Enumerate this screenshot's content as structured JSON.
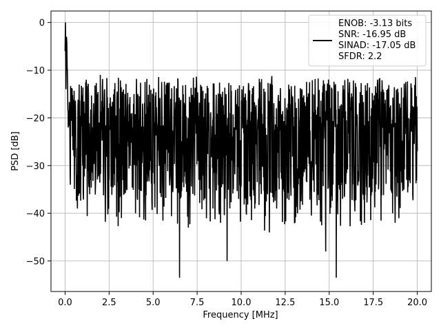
{
  "chart_data": {
    "type": "line",
    "title": "",
    "xlabel": "Frequency [MHz]",
    "ylabel": "PSD [dB]",
    "xlim": [
      -0.8,
      20.8
    ],
    "ylim": [
      -56.4,
      2.4
    ],
    "x_ticks": [
      0.0,
      2.5,
      5.0,
      7.5,
      10.0,
      12.5,
      15.0,
      17.5,
      20.0
    ],
    "x_tick_labels": [
      "0.0",
      "2.5",
      "5.0",
      "7.5",
      "10.0",
      "12.5",
      "15.0",
      "17.5",
      "20.0"
    ],
    "y_ticks": [
      0,
      -10,
      -20,
      -30,
      -40,
      -50
    ],
    "y_tick_labels": [
      "0",
      "−10",
      "−20",
      "−30",
      "−40",
      "−50"
    ],
    "grid": true,
    "legend_position": "top-right",
    "series_color": "#000000",
    "series": [
      {
        "name": "ENOB: -3.13 bits\nSNR: -16.95 dB\nSINAD: -17.05 dB\nSFDR: 2.2",
        "legend_lines": [
          "ENOB: -3.13 bits",
          "SNR: -16.95 dB",
          "SINAD: -17.05 dB",
          "SFDR: 2.2"
        ],
        "x": [
          0.0,
          0.02,
          0.05,
          0.08,
          0.12,
          0.18,
          0.25,
          0.3,
          0.4,
          0.5,
          0.6,
          0.7,
          0.8,
          0.9,
          1.0,
          1.2,
          1.4,
          1.6,
          1.8,
          2.0,
          2.5,
          2.8,
          3.0,
          3.2,
          3.4,
          3.6,
          3.8,
          4.0,
          4.4,
          4.8,
          5.2,
          5.6,
          6.0,
          6.3,
          6.5,
          6.8,
          7.0,
          7.3,
          7.6,
          8.0,
          8.4,
          8.8,
          9.2,
          9.6,
          10.0,
          10.4,
          10.8,
          11.2,
          11.6,
          12.0,
          12.4,
          12.8,
          13.2,
          13.6,
          14.0,
          14.4,
          14.8,
          15.0,
          15.4,
          15.8,
          16.2,
          16.6,
          17.0,
          17.4,
          17.8,
          18.2,
          18.6,
          19.0,
          19.4,
          19.8,
          20.0
        ],
        "y": [
          -6,
          0,
          -14,
          -3,
          -10,
          -22,
          -18,
          -34,
          -14,
          -28,
          -19,
          -39,
          -13,
          -25,
          -30,
          -12,
          -36,
          -20,
          -27,
          -11,
          -33,
          -14,
          -24,
          -41,
          -15,
          -26,
          -19,
          -40,
          -17,
          -31,
          -21,
          -38,
          -16,
          -29,
          -53.5,
          -22,
          -43,
          -17,
          -33,
          -24,
          -39,
          -18,
          -50,
          -22,
          -34,
          -16,
          -38,
          -23,
          -44,
          -18,
          -35,
          -22,
          -40,
          -17,
          -32,
          -21,
          -48,
          -24,
          -53.5,
          -19,
          -37,
          -23,
          -42,
          -18,
          -35,
          -21,
          -40,
          -17,
          -33,
          -22,
          -27
        ]
      }
    ]
  }
}
